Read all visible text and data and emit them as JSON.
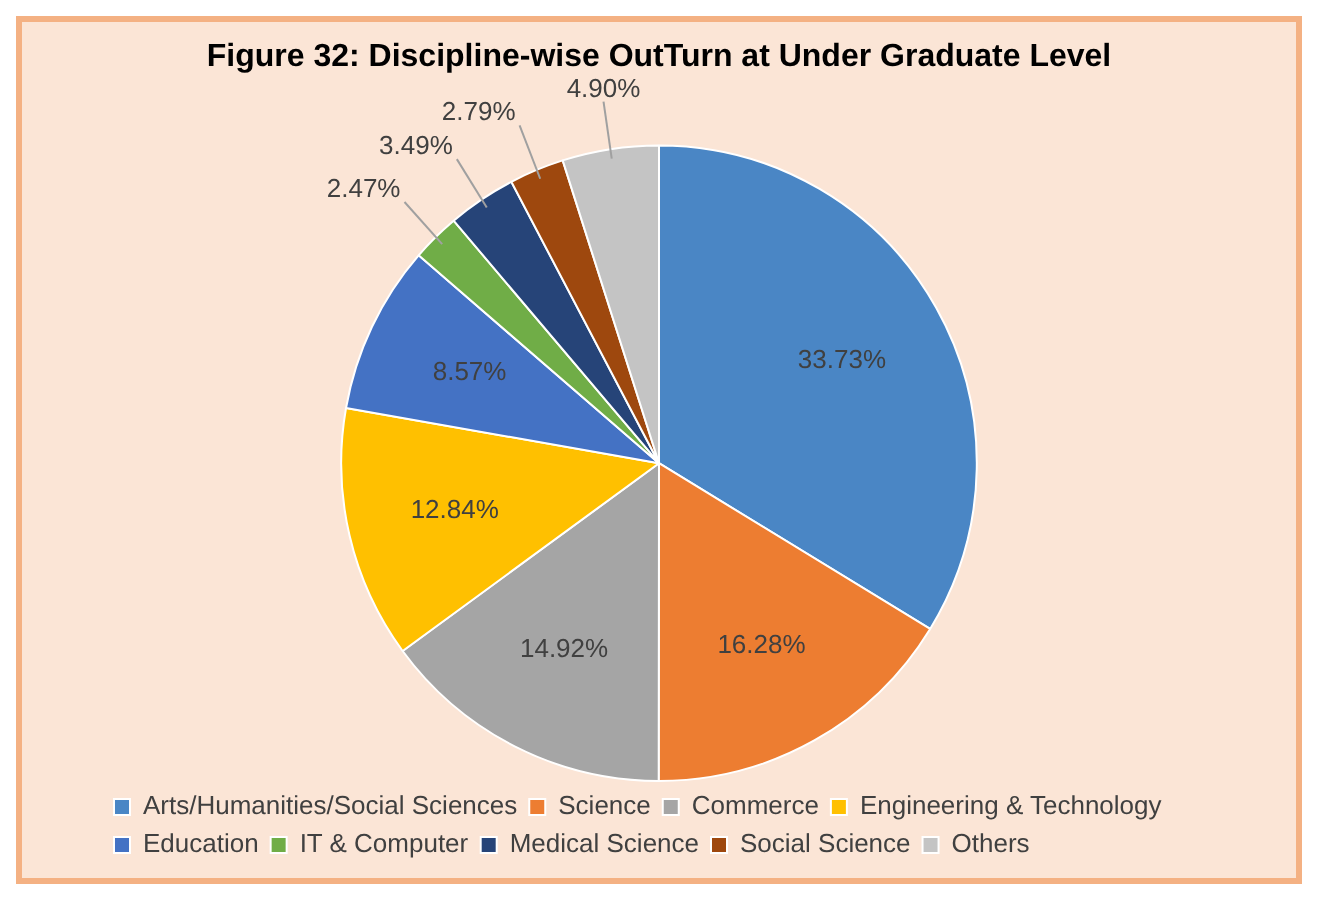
{
  "chart_data": {
    "type": "pie",
    "title": "Figure 32: Discipline-wise OutTurn at Under Graduate Level",
    "categories": [
      "Arts/Humanities/Social Sciences",
      "Science",
      "Commerce",
      "Engineering & Technology",
      "Education",
      "IT & Computer",
      "Medical Science",
      "Social Science",
      "Others"
    ],
    "values": [
      33.73,
      16.28,
      14.92,
      12.84,
      8.57,
      2.47,
      3.49,
      2.79,
      4.9
    ],
    "value_labels": [
      "33.73%",
      "16.28%",
      "14.92%",
      "12.84%",
      "8.57%",
      "2.47%",
      "3.49%",
      "2.79%",
      "4.90%"
    ],
    "colors": [
      "#4a86c5",
      "#ed7d31",
      "#a5a5a5",
      "#ffc000",
      "#4472c4",
      "#70ad47",
      "#264478",
      "#9e480e",
      "#c4c4c4"
    ],
    "legend": "bottom"
  }
}
